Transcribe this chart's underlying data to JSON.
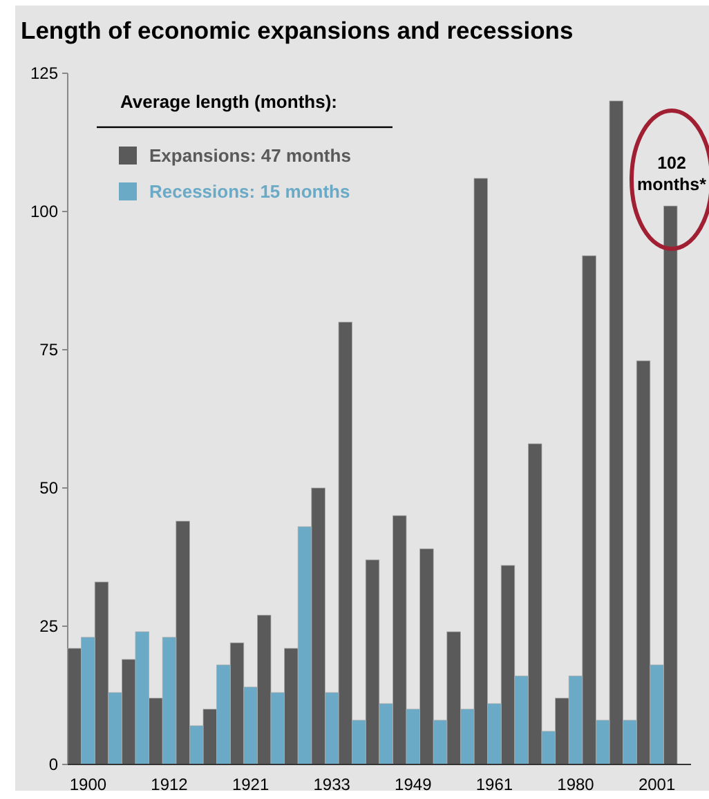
{
  "chart_data": {
    "type": "bar",
    "title": "Length of economic expansions and recessions",
    "categories": [
      null,
      "1900",
      null,
      null,
      null,
      null,
      null,
      "1912",
      null,
      null,
      null,
      null,
      null,
      "1921",
      null,
      null,
      null,
      null,
      null,
      "1933",
      null,
      null,
      null,
      null,
      null,
      "1949",
      null,
      null,
      null,
      null,
      null,
      "1961",
      null,
      null,
      null,
      null,
      null,
      "1980",
      null,
      null,
      null,
      null,
      null,
      "2001",
      null
    ],
    "series": [
      {
        "name": "Expansions: 47 months",
        "color": "#5a5a5a",
        "values": [
          21,
          null,
          33,
          null,
          19,
          null,
          12,
          null,
          44,
          null,
          10,
          null,
          22,
          null,
          27,
          null,
          21,
          null,
          50,
          null,
          80,
          null,
          37,
          null,
          45,
          null,
          39,
          null,
          24,
          null,
          106,
          null,
          36,
          null,
          58,
          null,
          12,
          null,
          92,
          null,
          120,
          null,
          73,
          null,
          101
        ]
      },
      {
        "name": "Recessions: 15 months",
        "color": "#6aaac6",
        "values": [
          null,
          23,
          null,
          13,
          null,
          24,
          null,
          23,
          null,
          7,
          null,
          18,
          null,
          14,
          null,
          13,
          null,
          43,
          null,
          13,
          null,
          8,
          null,
          11,
          null,
          10,
          null,
          8,
          null,
          10,
          null,
          11,
          null,
          16,
          null,
          6,
          null,
          16,
          null,
          8,
          null,
          8,
          null,
          18,
          null
        ]
      }
    ],
    "legend_title": "Average length (months):",
    "legend": "top left",
    "ylim": [
      0,
      125
    ],
    "yticks": [
      0,
      25,
      50,
      75,
      100,
      125
    ],
    "annotations": [
      "102 months*"
    ]
  }
}
